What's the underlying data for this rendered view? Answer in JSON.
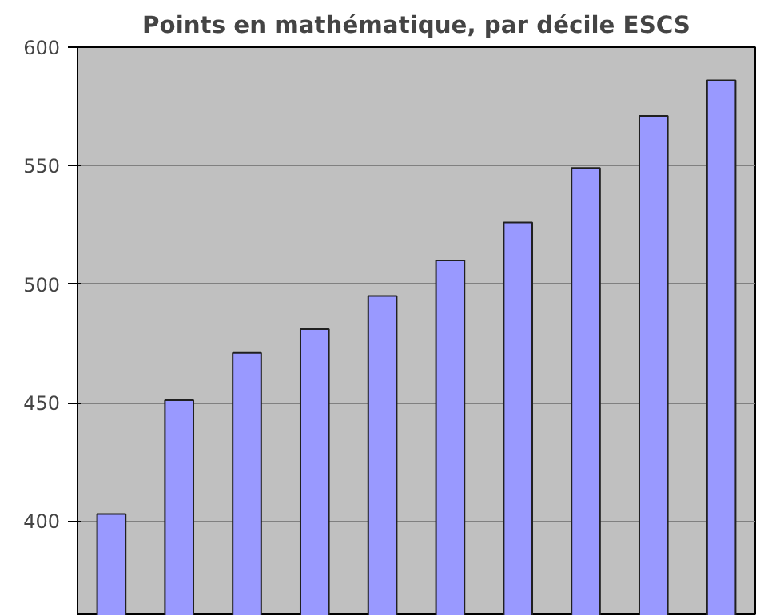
{
  "chart_data": {
    "type": "bar",
    "title": "Points en mathématique, par décile ESCS",
    "categories": [
      null,
      null,
      null,
      null,
      null,
      null,
      null,
      null,
      null,
      null
    ],
    "values": [
      403,
      451,
      471,
      481,
      495,
      510,
      526,
      549,
      571,
      586
    ],
    "color": "#9999ff",
    "ylim": [
      360,
      600
    ],
    "yticks": [
      400,
      450,
      500,
      550,
      600
    ],
    "grid": "y",
    "tick_labels": "y"
  }
}
